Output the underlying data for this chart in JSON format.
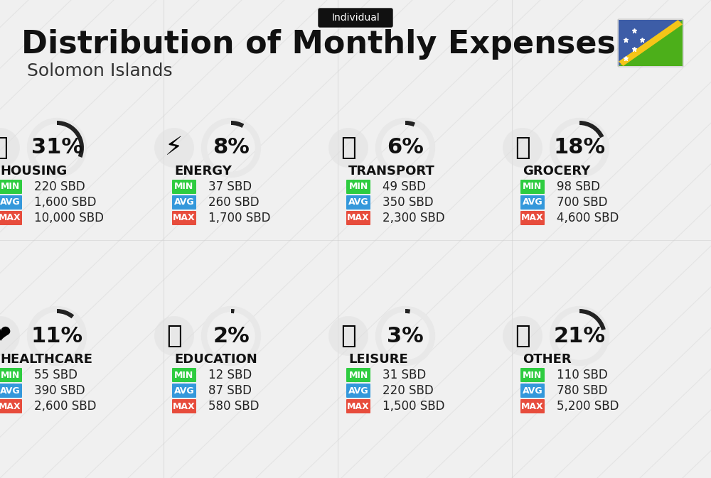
{
  "title": "Distribution of Monthly Expenses",
  "subtitle": "Solomon Islands",
  "badge": "Individual",
  "bg_color": "#f0f0f0",
  "categories": [
    {
      "name": "HOUSING",
      "pct": 31,
      "min": "220 SBD",
      "avg": "1,600 SBD",
      "max": "10,000 SBD",
      "icon": "housing",
      "row": 0,
      "col": 0
    },
    {
      "name": "ENERGY",
      "pct": 8,
      "min": "37 SBD",
      "avg": "260 SBD",
      "max": "1,700 SBD",
      "icon": "energy",
      "row": 0,
      "col": 1
    },
    {
      "name": "TRANSPORT",
      "pct": 6,
      "min": "49 SBD",
      "avg": "350 SBD",
      "max": "2,300 SBD",
      "icon": "transport",
      "row": 0,
      "col": 2
    },
    {
      "name": "GROCERY",
      "pct": 18,
      "min": "98 SBD",
      "avg": "700 SBD",
      "max": "4,600 SBD",
      "icon": "grocery",
      "row": 0,
      "col": 3
    },
    {
      "name": "HEALTHCARE",
      "pct": 11,
      "min": "55 SBD",
      "avg": "390 SBD",
      "max": "2,600 SBD",
      "icon": "healthcare",
      "row": 1,
      "col": 0
    },
    {
      "name": "EDUCATION",
      "pct": 2,
      "min": "12 SBD",
      "avg": "87 SBD",
      "max": "580 SBD",
      "icon": "education",
      "row": 1,
      "col": 1
    },
    {
      "name": "LEISURE",
      "pct": 3,
      "min": "31 SBD",
      "avg": "220 SBD",
      "max": "1,500 SBD",
      "icon": "leisure",
      "row": 1,
      "col": 2
    },
    {
      "name": "OTHER",
      "pct": 21,
      "min": "110 SBD",
      "avg": "780 SBD",
      "max": "5,200 SBD",
      "icon": "other",
      "row": 1,
      "col": 3
    }
  ],
  "min_color": "#2ecc40",
  "avg_color": "#3498db",
  "max_color": "#e74c3c",
  "label_text_color": "#ffffff",
  "circle_color": "#333333",
  "circle_bg": "#e8e8e8",
  "pct_fontsize": 22,
  "category_fontsize": 13,
  "value_fontsize": 12,
  "label_fontsize": 9
}
